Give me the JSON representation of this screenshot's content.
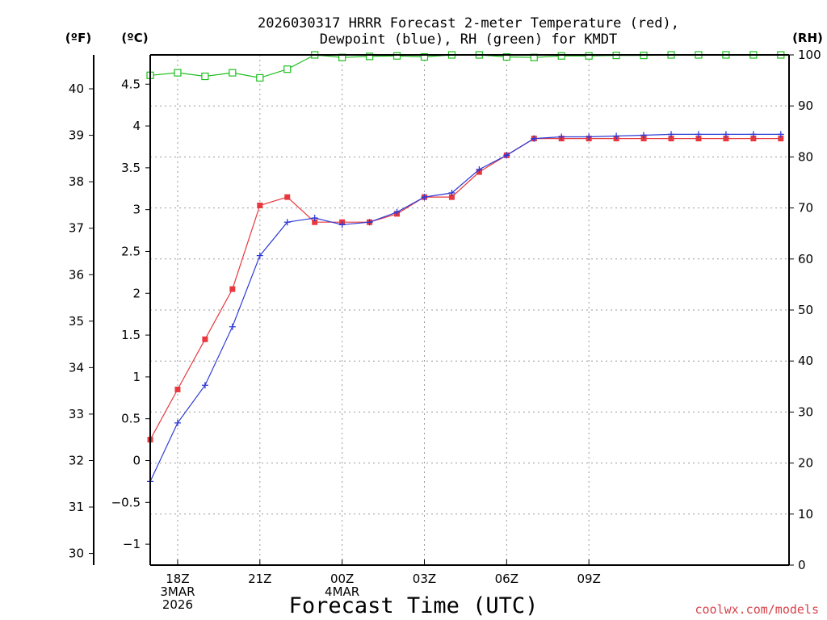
{
  "chart_data": {
    "type": "line",
    "title_line1": "2026030317 HRRR Forecast 2-meter Temperature (red),",
    "title_line2": "Dewpoint (blue), RH (green) for KMDT",
    "xlabel": "Forecast Time (UTC)",
    "watermark": "coolwx.com/models",
    "units": {
      "fahrenheit": "(ºF)",
      "celsius": "(ºC)",
      "rh": "(RH)"
    },
    "hours": [
      17,
      18,
      19,
      20,
      21,
      22,
      23,
      24,
      25,
      26,
      27,
      28,
      29,
      30,
      31,
      32,
      33,
      34,
      35,
      36,
      37,
      38,
      39,
      40
    ],
    "x_range": [
      17,
      40.3
    ],
    "x_ticks": [
      {
        "hour": 18,
        "lines": [
          "18Z",
          "3MAR",
          "2026"
        ]
      },
      {
        "hour": 21,
        "lines": [
          "21Z"
        ]
      },
      {
        "hour": 24,
        "lines": [
          "00Z",
          "4MAR"
        ]
      },
      {
        "hour": 27,
        "lines": [
          "03Z"
        ]
      },
      {
        "hour": 30,
        "lines": [
          "06Z"
        ]
      },
      {
        "hour": 33,
        "lines": [
          "09Z"
        ]
      }
    ],
    "celsius_range": [
      -1.25,
      4.85
    ],
    "fahrenheit_ticks": [
      "30",
      "31",
      "32",
      "33",
      "34",
      "35",
      "36",
      "37",
      "38",
      "39",
      "40"
    ],
    "celsius_ticks": [
      "−1",
      "−0.5",
      "0",
      "0.5",
      "1",
      "1.5",
      "2",
      "2.5",
      "3",
      "3.5",
      "4",
      "4.5"
    ],
    "rh_range": [
      0,
      100
    ],
    "rh_ticks": [
      "0",
      "10",
      "20",
      "30",
      "40",
      "50",
      "60",
      "70",
      "80",
      "90",
      "100"
    ],
    "series": [
      {
        "name": "Temperature",
        "color": "#e8383d",
        "marker": "square",
        "values": [
          0.25,
          0.85,
          1.45,
          2.05,
          3.05,
          3.15,
          2.85,
          2.85,
          2.85,
          2.95,
          3.15,
          3.15,
          3.45,
          3.65,
          3.85,
          3.85,
          3.85,
          3.85,
          3.85,
          3.85,
          3.85,
          3.85,
          3.85,
          3.85
        ]
      },
      {
        "name": "Dewpoint",
        "color": "#2e3ad6",
        "marker": "plus",
        "values": [
          -0.25,
          0.45,
          0.9,
          1.6,
          2.45,
          2.85,
          2.9,
          2.82,
          2.85,
          2.97,
          3.15,
          3.2,
          3.48,
          3.65,
          3.85,
          3.87,
          3.87,
          3.88,
          3.89,
          3.9,
          3.9,
          3.9,
          3.9,
          3.9
        ]
      },
      {
        "name": "RH",
        "color": "#1fbf1f",
        "marker": "open-square",
        "values": [
          96,
          96.5,
          95.8,
          96.5,
          95.5,
          97.2,
          100,
          99.5,
          99.7,
          99.8,
          99.6,
          100,
          100,
          99.6,
          99.5,
          99.8,
          99.8,
          99.9,
          99.9,
          100,
          100,
          100,
          100,
          100
        ]
      }
    ]
  }
}
